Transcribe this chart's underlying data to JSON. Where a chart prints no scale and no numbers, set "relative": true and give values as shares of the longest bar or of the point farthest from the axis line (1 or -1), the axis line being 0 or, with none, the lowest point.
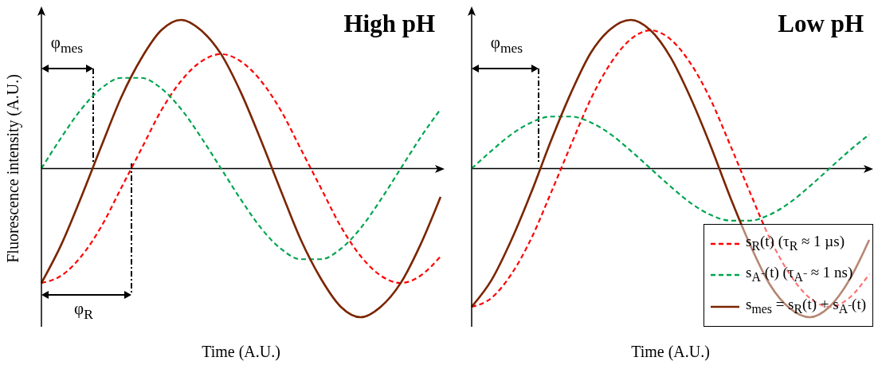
{
  "chart_data": [
    {
      "type": "line",
      "title": "High pH",
      "xlabel": "Time (A.U.)",
      "ylabel": "Fluorescence intensity (A.U.)",
      "relative": true,
      "marker": "none",
      "legend": false,
      "annotations": [
        "φ$_{mes}$",
        "φ$_{R}$"
      ],
      "categories": [
        null,
        null,
        null,
        null,
        null,
        null,
        null,
        null,
        null,
        null,
        null,
        null,
        null,
        null,
        null,
        null,
        null,
        null,
        null,
        null,
        null
      ],
      "series": [
        {
          "color": "#ff0000",
          "line_style": "dashed",
          "values": [
            -0.77,
            -0.72,
            -0.59,
            -0.39,
            -0.13,
            0.13,
            0.39,
            0.59,
            0.72,
            0.77,
            0.72,
            0.59,
            0.39,
            0.13,
            -0.13,
            -0.39,
            -0.59,
            -0.72,
            -0.77,
            -0.72,
            -0.59
          ]
        },
        {
          "color": "#00a550",
          "line_style": "dashed",
          "values": [
            0,
            0.21,
            0.4,
            0.54,
            0.61,
            0.61,
            0.54,
            0.4,
            0.21,
            0,
            -0.21,
            -0.4,
            -0.54,
            -0.61,
            -0.61,
            -0.54,
            -0.4,
            -0.21,
            0,
            0.21,
            0.4
          ]
        },
        {
          "color": "#7b2500",
          "line_style": "solid",
          "values": [
            -0.77,
            -0.51,
            -0.19,
            0.15,
            0.48,
            0.74,
            0.93,
            1.0,
            0.93,
            0.77,
            0.51,
            0.19,
            -0.15,
            -0.48,
            -0.74,
            -0.93,
            -1.0,
            -0.93,
            -0.77,
            -0.51,
            -0.19
          ]
        }
      ]
    },
    {
      "type": "line",
      "title": "Low pH",
      "xlabel": "Time (A.U.)",
      "relative": true,
      "marker": "none",
      "legend": "bottom right",
      "annotations": [
        "φ$_{mes}$"
      ],
      "categories": [
        null,
        null,
        null,
        null,
        null,
        null,
        null,
        null,
        null,
        null,
        null,
        null,
        null,
        null,
        null,
        null,
        null,
        null,
        null,
        null,
        null
      ],
      "series": [
        {
          "name": "s$_{R}$(t) (τ$_{R}$ ≈ 1 µs)",
          "color": "#ff0000",
          "line_style": "dashed",
          "values": [
            -0.93,
            -0.87,
            -0.71,
            -0.47,
            -0.16,
            0.16,
            0.47,
            0.71,
            0.87,
            0.93,
            0.87,
            0.71,
            0.47,
            0.16,
            -0.16,
            -0.47,
            -0.71,
            -0.87,
            -0.93,
            -0.87,
            -0.71
          ]
        },
        {
          "name": "s$_{A⁻}$(t) (τ$_{A⁻}$ ≈ 1 ns)",
          "color": "#00a550",
          "line_style": "dashed",
          "values": [
            0,
            0.12,
            0.23,
            0.31,
            0.35,
            0.35,
            0.31,
            0.23,
            0.12,
            0,
            -0.12,
            -0.23,
            -0.31,
            -0.35,
            -0.35,
            -0.31,
            -0.23,
            -0.12,
            0,
            0.12,
            0.23
          ]
        },
        {
          "name": "s$_{mes}$ = s$_{R}$(t) + s$_{A⁻}$(t)",
          "color": "#7b2500",
          "line_style": "solid",
          "values": [
            -0.93,
            -0.75,
            -0.48,
            -0.16,
            0.19,
            0.51,
            0.78,
            0.94,
            1.0,
            0.93,
            0.75,
            0.48,
            0.16,
            -0.19,
            -0.51,
            -0.78,
            -0.94,
            -1.0,
            -0.93,
            -0.75,
            -0.48
          ]
        }
      ]
    }
  ]
}
